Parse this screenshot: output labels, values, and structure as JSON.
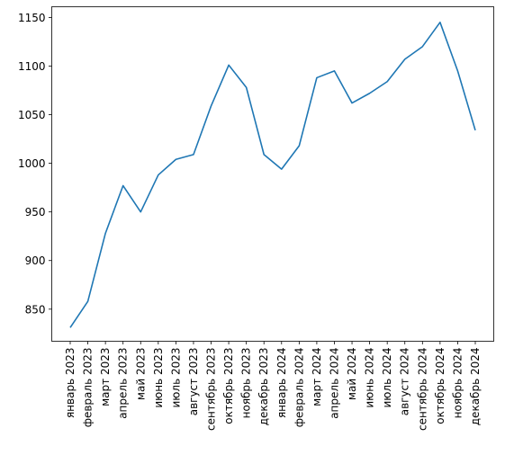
{
  "chart_data": {
    "type": "line",
    "title": "",
    "xlabel": "",
    "ylabel": "",
    "grid": false,
    "legend": "none",
    "ylim": [
      817,
      1161
    ],
    "yticks": [
      850,
      900,
      950,
      1000,
      1050,
      1100,
      1150
    ],
    "categories": [
      "январь 2023",
      "февраль 2023",
      "март 2023",
      "апрель 2023",
      "май 2023",
      "июнь 2023",
      "июль 2023",
      "август 2023",
      "сентябрь 2023",
      "октябрь 2023",
      "ноябрь 2023",
      "декабрь 2023",
      "январь 2024",
      "февраль 2024",
      "март 2024",
      "апрель 2024",
      "май 2024",
      "июнь 2024",
      "июль 2024",
      "август 2024",
      "сентябрь 2024",
      "октябрь 2024",
      "ноябрь 2024",
      "декабрь 2024"
    ],
    "series": [
      {
        "color": "#1f77b4",
        "values": [
          831,
          858,
          928,
          977,
          950,
          988,
          1004,
          1009,
          1059,
          1101,
          1078,
          1009,
          994,
          1018,
          1088,
          1095,
          1062,
          1072,
          1084,
          1107,
          1120,
          1145,
          1095,
          1034
        ]
      }
    ]
  }
}
